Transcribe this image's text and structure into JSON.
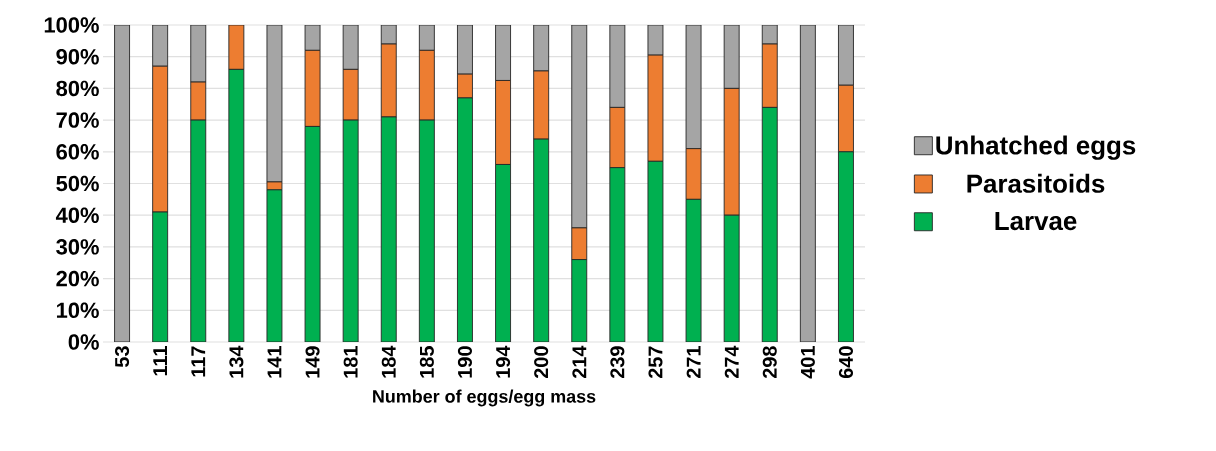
{
  "chart_data": {
    "type": "bar",
    "stacked": true,
    "xlabel": "Number of eggs/egg mass",
    "categories": [
      "53",
      "111",
      "117",
      "134",
      "141",
      "149",
      "181",
      "184",
      "185",
      "190",
      "194",
      "200",
      "214",
      "239",
      "257",
      "271",
      "274",
      "298",
      "401",
      "640"
    ],
    "series": [
      {
        "name": "Larvae",
        "color": "#00b050",
        "values": [
          0,
          41,
          70,
          86,
          48,
          68,
          70,
          71,
          70,
          77,
          56,
          64,
          26,
          55,
          57,
          45,
          40,
          74,
          0,
          60
        ]
      },
      {
        "name": "Parasitoids",
        "color": "#ed7d31",
        "values": [
          0,
          46,
          12,
          14,
          2.5,
          24,
          16,
          23,
          22,
          7.5,
          26.5,
          21.5,
          10,
          19,
          33.5,
          16,
          40,
          20,
          0,
          21
        ]
      },
      {
        "name": "Unhatched eggs",
        "color": "#a5a5a5",
        "values": [
          100,
          13,
          18,
          0,
          49.5,
          8,
          14,
          6,
          8,
          15.5,
          17.5,
          14.5,
          64,
          26,
          9.5,
          39,
          20,
          6,
          100,
          19
        ]
      }
    ],
    "ylim": [
      0,
      100
    ],
    "yticks": [
      {
        "value": 0,
        "label": "0%"
      },
      {
        "value": 10,
        "label": "10%"
      },
      {
        "value": 20,
        "label": "20%"
      },
      {
        "value": 30,
        "label": "30%"
      },
      {
        "value": 40,
        "label": "40%"
      },
      {
        "value": 50,
        "label": "50%"
      },
      {
        "value": 60,
        "label": "60%"
      },
      {
        "value": 70,
        "label": "70%"
      },
      {
        "value": 80,
        "label": "80%"
      },
      {
        "value": 90,
        "label": "90%"
      },
      {
        "value": 100,
        "label": "100%"
      }
    ],
    "grid": "y",
    "legend": "right"
  }
}
